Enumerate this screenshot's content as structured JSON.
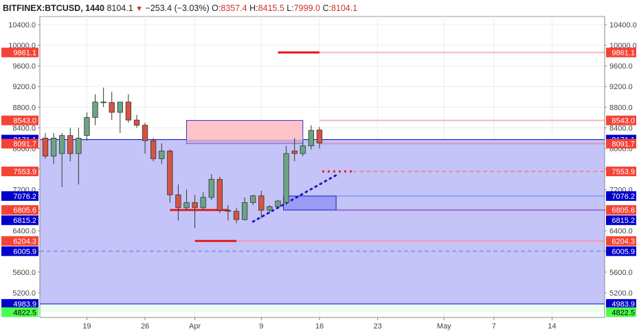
{
  "header": {
    "symbol": "BITFINEX:BTCUSD, 1440",
    "last": "8104.1",
    "change_arrow_icon": "triangle-down-icon",
    "change": "−253.4 (−3.03%)",
    "open_label": "O:",
    "open": "8357.4",
    "high_label": "H:",
    "high": "8415.5",
    "low_label": "L:",
    "low": "7999.0",
    "close_label": "C:",
    "close": "8104.1"
  },
  "chart_data": {
    "type": "candlestick",
    "title": "",
    "y_ticks": [
      10400,
      10000,
      9600,
      9200,
      8800,
      8400,
      8000,
      7600,
      7200,
      6800,
      6400,
      6000,
      5600,
      5200
    ],
    "ylim": [
      4720,
      10560
    ],
    "x_tick_labels": [
      "19",
      "26",
      "Apr",
      "9",
      "16",
      "23",
      "May",
      "7",
      "14"
    ],
    "x_tick_dates": [
      "2018-03-19",
      "2018-03-26",
      "2018-04-01",
      "2018-04-09",
      "2018-04-16",
      "2018-04-23",
      "2018-05-01",
      "2018-05-07",
      "2018-05-14"
    ],
    "x_range": [
      "2018-03-14",
      "2018-05-20"
    ],
    "grid": true,
    "candles": [
      {
        "date": "2018-03-14",
        "o": 8200,
        "h": 8300,
        "l": 7800,
        "c": 7850
      },
      {
        "date": "2018-03-15",
        "o": 7850,
        "h": 8300,
        "l": 7700,
        "c": 8200
      },
      {
        "date": "2018-03-16",
        "o": 7900,
        "h": 8300,
        "l": 7250,
        "c": 8250
      },
      {
        "date": "2018-03-17",
        "o": 8250,
        "h": 8400,
        "l": 7750,
        "c": 7900
      },
      {
        "date": "2018-03-18",
        "o": 7900,
        "h": 8400,
        "l": 7300,
        "c": 8200
      },
      {
        "date": "2018-03-19",
        "o": 8250,
        "h": 8700,
        "l": 8150,
        "c": 8600
      },
      {
        "date": "2018-03-20",
        "o": 8600,
        "h": 9050,
        "l": 8450,
        "c": 8900
      },
      {
        "date": "2018-03-21",
        "o": 8900,
        "h": 9180,
        "l": 8800,
        "c": 8890
      },
      {
        "date": "2018-03-22",
        "o": 8890,
        "h": 9100,
        "l": 8550,
        "c": 8700
      },
      {
        "date": "2018-03-23",
        "o": 8700,
        "h": 8900,
        "l": 8300,
        "c": 8900
      },
      {
        "date": "2018-03-24",
        "o": 8900,
        "h": 9050,
        "l": 8500,
        "c": 8550
      },
      {
        "date": "2018-03-25",
        "o": 8550,
        "h": 8650,
        "l": 8400,
        "c": 8450
      },
      {
        "date": "2018-03-26",
        "o": 8450,
        "h": 8500,
        "l": 7900,
        "c": 8150
      },
      {
        "date": "2018-03-27",
        "o": 8150,
        "h": 8200,
        "l": 7750,
        "c": 7800
      },
      {
        "date": "2018-03-28",
        "o": 7800,
        "h": 8100,
        "l": 7700,
        "c": 7950
      },
      {
        "date": "2018-03-29",
        "o": 7950,
        "h": 7980,
        "l": 6950,
        "c": 7100
      },
      {
        "date": "2018-03-30",
        "o": 7100,
        "h": 7300,
        "l": 6600,
        "c": 6850
      },
      {
        "date": "2018-03-31",
        "o": 6850,
        "h": 7200,
        "l": 6800,
        "c": 6950
      },
      {
        "date": "2018-04-01",
        "o": 6950,
        "h": 7100,
        "l": 6450,
        "c": 6850
      },
      {
        "date": "2018-04-02",
        "o": 6850,
        "h": 7150,
        "l": 6800,
        "c": 7050
      },
      {
        "date": "2018-04-03",
        "o": 7050,
        "h": 7500,
        "l": 7000,
        "c": 7400
      },
      {
        "date": "2018-04-04",
        "o": 7400,
        "h": 7450,
        "l": 6750,
        "c": 6800
      },
      {
        "date": "2018-04-05",
        "o": 6800,
        "h": 6900,
        "l": 6600,
        "c": 6780
      },
      {
        "date": "2018-04-06",
        "o": 6780,
        "h": 6850,
        "l": 6550,
        "c": 6620
      },
      {
        "date": "2018-04-07",
        "o": 6620,
        "h": 7050,
        "l": 6600,
        "c": 6950
      },
      {
        "date": "2018-04-08",
        "o": 6950,
        "h": 7100,
        "l": 6900,
        "c": 7080
      },
      {
        "date": "2018-04-09",
        "o": 7080,
        "h": 7180,
        "l": 6650,
        "c": 6800
      },
      {
        "date": "2018-04-10",
        "o": 6800,
        "h": 6900,
        "l": 6750,
        "c": 6870
      },
      {
        "date": "2018-04-11",
        "o": 6870,
        "h": 7000,
        "l": 6850,
        "c": 6980
      },
      {
        "date": "2018-04-12",
        "o": 6950,
        "h": 8050,
        "l": 6900,
        "c": 7900
      },
      {
        "date": "2018-04-13",
        "o": 7950,
        "h": 8200,
        "l": 7750,
        "c": 7900
      },
      {
        "date": "2018-04-14",
        "o": 7900,
        "h": 8150,
        "l": 7850,
        "c": 8050
      },
      {
        "date": "2018-04-15",
        "o": 8050,
        "h": 8450,
        "l": 7980,
        "c": 8350
      },
      {
        "date": "2018-04-16",
        "o": 8357.4,
        "h": 8415.5,
        "l": 7999.0,
        "c": 8104.1
      }
    ],
    "levels": [
      {
        "price": "9861.1",
        "color": "#f44336"
      },
      {
        "price": "8543.0",
        "color": "#f44336"
      },
      {
        "price": "8171.1",
        "color": "#0000cc"
      },
      {
        "price": "8091.7",
        "color": "#f44336"
      },
      {
        "price": "7553.9",
        "color": "#f44336"
      },
      {
        "price": "7076.2",
        "color": "#0000cc"
      },
      {
        "price": "6805.6",
        "color": "#f44336"
      },
      {
        "price": "6815.2",
        "color": "#0000cc"
      },
      {
        "price": "6204.3",
        "color": "#f44336"
      },
      {
        "price": "6005.9",
        "color": "#0000cc"
      },
      {
        "price": "4983.9",
        "color": "#0000cc"
      },
      {
        "price": "4822.5",
        "color": "#4dff4d"
      }
    ],
    "colors": {
      "up_candle": "#6ba583",
      "down_candle": "#d75442",
      "zone_fill": "#c4c4f8",
      "pink_zone": "#ffc4c8"
    }
  }
}
